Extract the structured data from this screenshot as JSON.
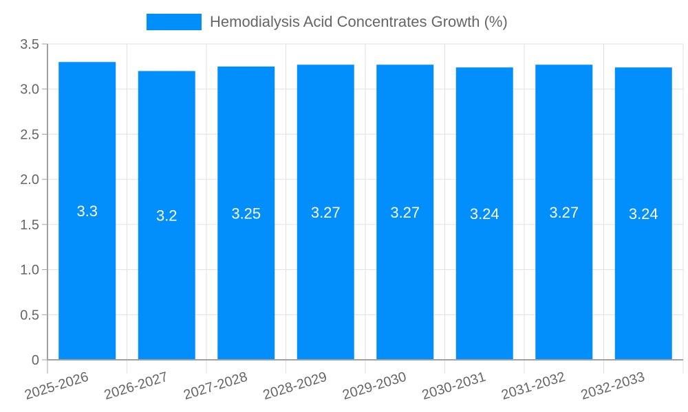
{
  "legend": {
    "label": "Hemodialysis Acid Concentrates Growth (%)",
    "color": "#038ffb"
  },
  "colors": {
    "bar": "#038ffb",
    "grid": "#e0e0e0",
    "axis": "#a0a0a0",
    "tick_text": "#666666",
    "bar_label": "#ffffff"
  },
  "chart_data": {
    "type": "bar",
    "title": "",
    "xlabel": "",
    "ylabel": "",
    "categories": [
      "2025-2026",
      "2026-2027",
      "2027-2028",
      "2028-2029",
      "2029-2030",
      "2030-2031",
      "2031-2032",
      "2032-2033"
    ],
    "series": [
      {
        "name": "Hemodialysis Acid Concentrates Growth (%)",
        "values": [
          3.3,
          3.2,
          3.25,
          3.27,
          3.27,
          3.24,
          3.27,
          3.24
        ]
      }
    ],
    "ylim": [
      0,
      3.5
    ],
    "yticks": [
      "0",
      "0.5",
      "1.0",
      "1.5",
      "2.0",
      "2.5",
      "3.0",
      "3.5"
    ],
    "grid": true,
    "legend_position": "top",
    "data_labels": [
      "3.3",
      "3.2",
      "3.25",
      "3.27",
      "3.27",
      "3.24",
      "3.27",
      "3.24"
    ]
  }
}
